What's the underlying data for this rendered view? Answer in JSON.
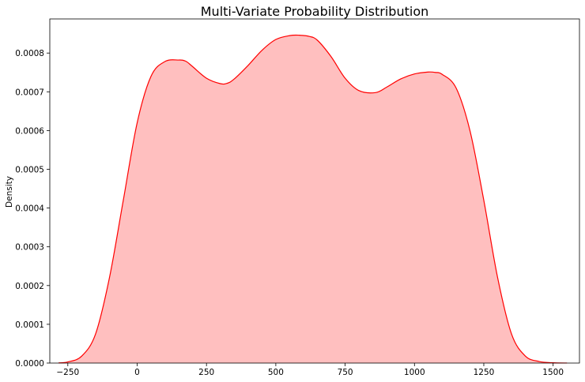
{
  "chart_data": {
    "type": "area",
    "title": "Multi-Variate Probability Distribution",
    "xlabel": "",
    "ylabel": "Density",
    "xlim": [
      -315,
      1595
    ],
    "ylim": [
      0,
      0.000888
    ],
    "grid": false,
    "legend": "none",
    "fill_color": "#ffbfbf",
    "line_color": "#ff0000",
    "x_ticks": [
      -250,
      0,
      250,
      500,
      750,
      1000,
      1250,
      1500
    ],
    "x_tick_labels": [
      "−250",
      "0",
      "250",
      "500",
      "750",
      "1000",
      "1250",
      "1500"
    ],
    "y_ticks": [
      0,
      0.0001,
      0.0002,
      0.0003,
      0.0004,
      0.0005,
      0.0006,
      0.0007,
      0.0008
    ],
    "y_tick_labels": [
      "0.0000",
      "0.0001",
      "0.0002",
      "0.0003",
      "0.0004",
      "0.0005",
      "0.0006",
      "0.0007",
      "0.0008"
    ],
    "series": [
      {
        "x": [
          -283,
          -250,
          -200,
          -150,
          -100,
          -50,
          0,
          50,
          100,
          150,
          175,
          200,
          250,
          300,
          325,
          350,
          400,
          450,
          500,
          550,
          585,
          620,
          650,
          700,
          750,
          800,
          860,
          900,
          950,
          1000,
          1050,
          1075,
          1100,
          1150,
          1200,
          1250,
          1300,
          1350,
          1400,
          1450,
          1500,
          1550
        ],
        "y": [
          5e-07,
          3e-06,
          1.8e-05,
          7.5e-05,
          0.00022,
          0.00042,
          0.00062,
          0.00074,
          0.000778,
          0.000782,
          0.000779,
          0.000765,
          0.000735,
          0.000721,
          0.000722,
          0.000733,
          0.000768,
          0.000807,
          0.000835,
          0.000845,
          0.000846,
          0.000843,
          0.000833,
          0.00079,
          0.000735,
          0.000703,
          0.000698,
          0.000712,
          0.000733,
          0.000746,
          0.000751,
          0.00075,
          0.000745,
          0.00071,
          0.0006,
          0.00042,
          0.00022,
          7.5e-05,
          1.8e-05,
          4e-06,
          8e-07,
          1e-07
        ]
      }
    ]
  }
}
